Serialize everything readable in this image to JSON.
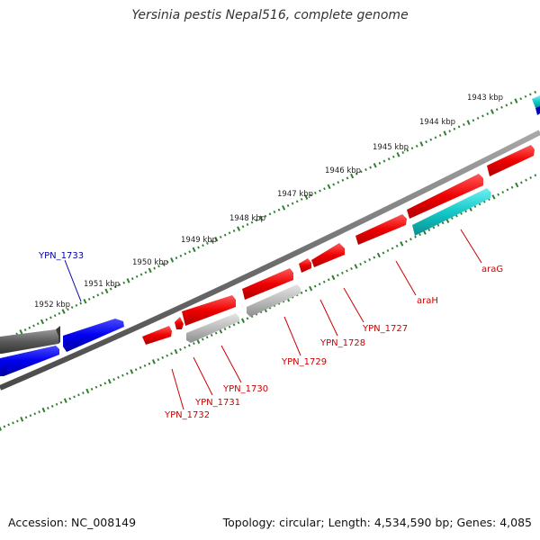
{
  "title": "Yersinia pestis Nepal516, complete genome",
  "footer": {
    "accession": "Accession: NC_008149",
    "topology": "Topology: circular; Length: 4,534,590 bp; Genes: 4,085"
  },
  "colors": {
    "backbone": "#7a7a7a",
    "tick": "#2f7d2f",
    "forward_gene": "#0000dd",
    "forward_gene_dark": "#555555",
    "reverse_gene": "#ee0000",
    "reverse_gene_gray": "#b8b8b8",
    "cyan_gene": "#14c8c8",
    "label_blue": "#0000aa",
    "label_red": "#cc0000"
  },
  "scale_labels": [
    "1943 kbp",
    "1944 kbp",
    "1945 kbp",
    "1946 kbp",
    "1947 kbp",
    "1948 kbp",
    "1949 kbp",
    "1950 kbp",
    "1951 kbp",
    "1952 kbp"
  ],
  "gene_labels": [
    {
      "text": "YPN_1733",
      "strand": "forward"
    },
    {
      "text": "araG",
      "strand": "reverse"
    },
    {
      "text": "araH",
      "strand": "reverse"
    },
    {
      "text": "YPN_1727",
      "strand": "reverse"
    },
    {
      "text": "YPN_1728",
      "strand": "reverse"
    },
    {
      "text": "YPN_1729",
      "strand": "reverse"
    },
    {
      "text": "YPN_1730",
      "strand": "reverse"
    },
    {
      "text": "YPN_1731",
      "strand": "reverse"
    },
    {
      "text": "YPN_1732",
      "strand": "reverse"
    }
  ]
}
